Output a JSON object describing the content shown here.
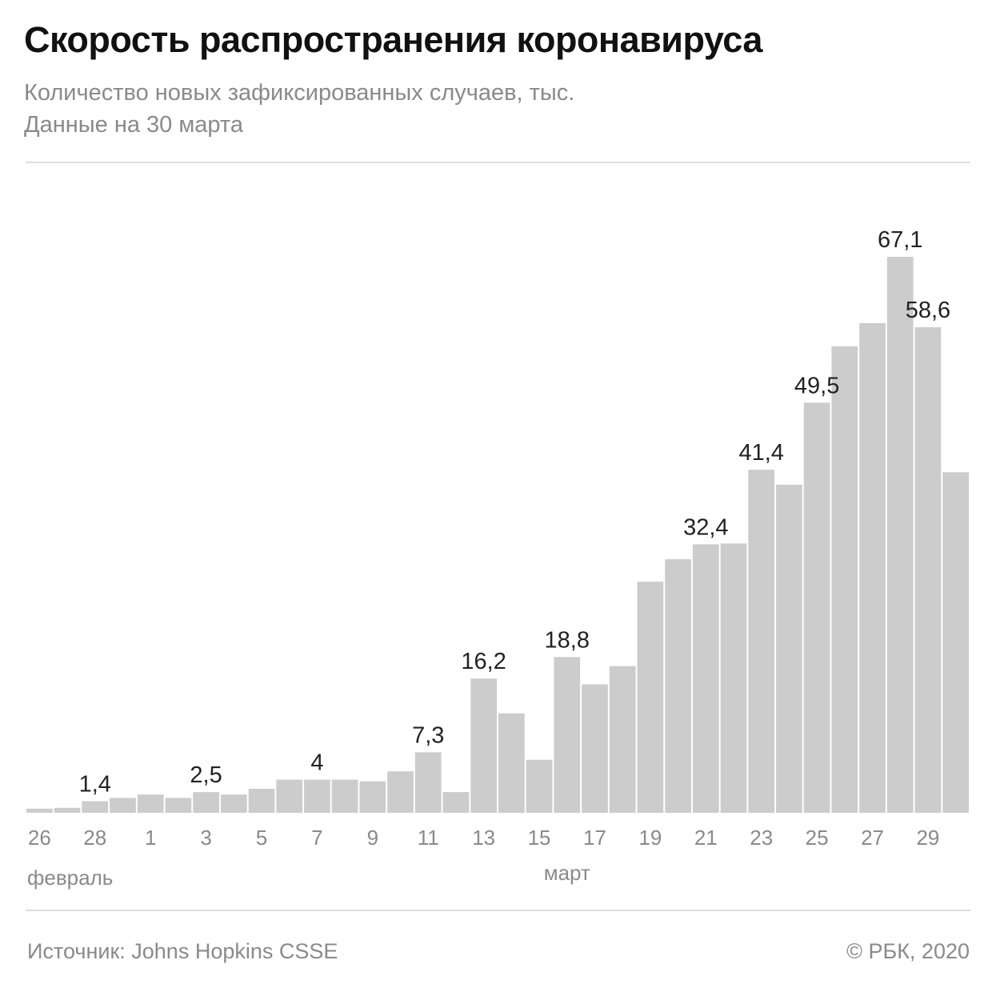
{
  "header": {
    "title": "Скорость распространения коронавируса",
    "subtitle_line1": "Количество новых зафиксированных случаев, тыс.",
    "subtitle_line2": "Данные на 30 марта"
  },
  "footer": {
    "source": "Источник: Johns Hopkins CSSE",
    "copyright": "© РБК, 2020"
  },
  "colors": {
    "bar": "#cccccc",
    "label": "#222222",
    "tick": "#8a8a8a"
  },
  "chart_data": {
    "type": "bar",
    "title": "Скорость распространения коронавируса",
    "ylabel": "",
    "xlabel": "",
    "categories": [
      "26 фев",
      "27 фев",
      "28 фев",
      "29 фев",
      "1 мар",
      "2 мар",
      "3 мар",
      "4 мар",
      "5 мар",
      "6 мар",
      "7 мар",
      "8 мар",
      "9 мар",
      "10 мар",
      "11 мар",
      "12 мар",
      "13 мар",
      "14 мар",
      "15 мар",
      "16 мар",
      "17 мар",
      "18 мар",
      "19 мар",
      "20 мар",
      "21 мар",
      "22 мар",
      "23 мар",
      "24 мар",
      "25 мар",
      "26 мар",
      "27 мар",
      "28 мар",
      "29 мар",
      "30 мар"
    ],
    "values": [
      0.5,
      0.6,
      1.4,
      1.8,
      2.2,
      1.8,
      2.5,
      2.2,
      2.9,
      4.0,
      4.0,
      4.0,
      3.8,
      5.0,
      7.3,
      2.5,
      16.2,
      12.0,
      6.4,
      18.8,
      15.5,
      17.7,
      27.9,
      30.6,
      32.4,
      32.5,
      41.4,
      39.6,
      49.5,
      56.3,
      59.1,
      67.1,
      58.6,
      41.1
    ],
    "value_labels": [
      "",
      "",
      "1,4",
      "",
      "",
      "",
      "2,5",
      "",
      "",
      "",
      "4",
      "",
      "",
      "",
      "7,3",
      "",
      "16,2",
      "",
      "",
      "18,8",
      "",
      "",
      "",
      "",
      "32,4",
      "",
      "41,4",
      "",
      "49,5",
      "",
      "",
      "67,1",
      "58,6",
      ""
    ],
    "tick_labels": [
      "26",
      "",
      "28",
      "",
      "1",
      "",
      "3",
      "",
      "5",
      "",
      "7",
      "",
      "9",
      "",
      "11",
      "",
      "13",
      "",
      "15",
      "",
      "17",
      "",
      "19",
      "",
      "21",
      "",
      "23",
      "",
      "25",
      "",
      "27",
      "",
      "29",
      ""
    ],
    "month_labels": [
      {
        "text": "февраль",
        "start_index": 0
      },
      {
        "text": "март",
        "center_index": 19
      }
    ],
    "ylim": [
      0,
      70
    ],
    "grid": false,
    "legend": "none"
  }
}
